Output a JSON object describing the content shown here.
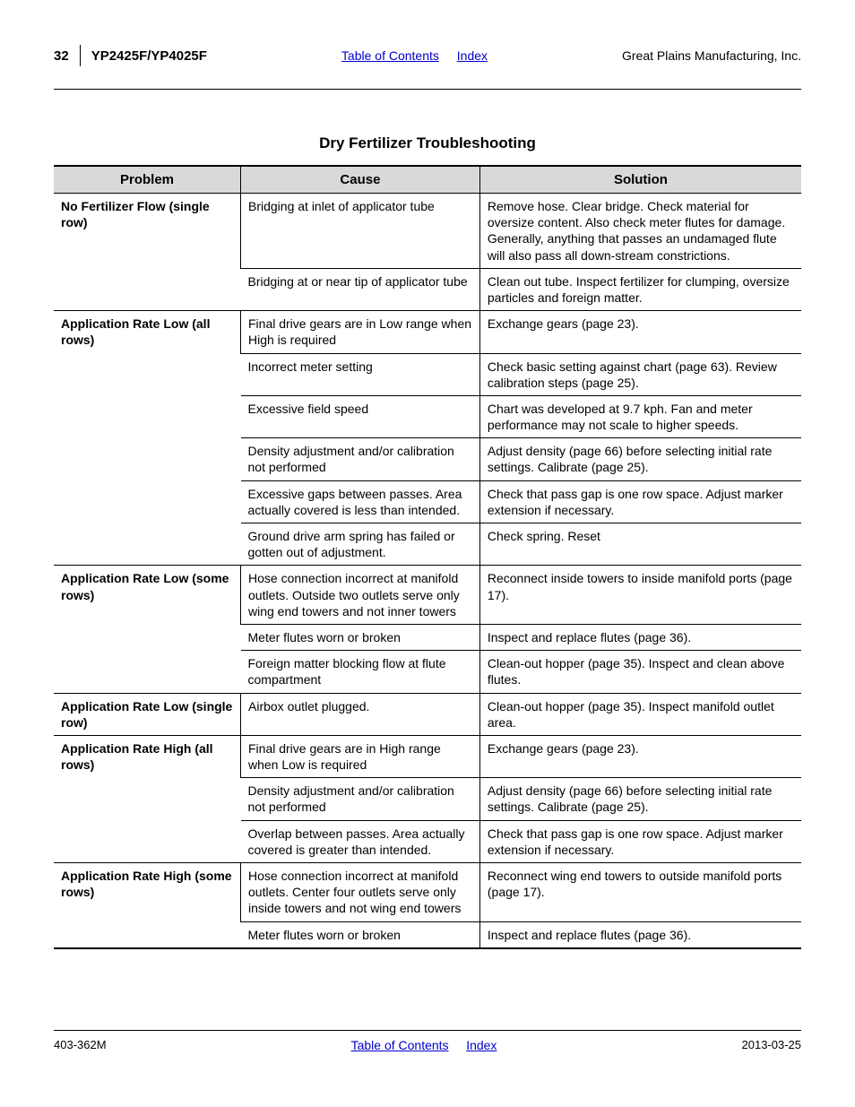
{
  "header": {
    "page_number": "32",
    "model": "YP2425F/YP4025F",
    "toc_link": "Table of Contents",
    "index_link": "Index",
    "company": "Great Plains Manufacturing, Inc."
  },
  "section_title": "Dry Fertilizer Troubleshooting",
  "table": {
    "columns": [
      "Problem",
      "Cause",
      "Solution"
    ],
    "groups": [
      {
        "problem": "No Fertilizer Flow (single row)",
        "rows": [
          {
            "cause": "Bridging at inlet of applicator tube",
            "solution": "Remove hose. Clear bridge. Check material for oversize content. Also check meter flutes for damage. Generally, anything that passes an undamaged flute will also pass all down-stream constrictions."
          },
          {
            "cause": "Bridging at or near tip of applicator tube",
            "solution": "Clean out tube. Inspect fertilizer for clumping, oversize particles and foreign matter."
          }
        ]
      },
      {
        "problem": "Application Rate Low (all rows)",
        "rows": [
          {
            "cause": "Final drive gears are in Low range when High is required",
            "solution": "Exchange gears (page 23)."
          },
          {
            "cause": "Incorrect meter setting",
            "solution": "Check basic setting against chart (page 63). Review calibration steps (page 25)."
          },
          {
            "cause": "Excessive field speed",
            "solution": "Chart was developed at 9.7 kph. Fan and meter performance may not scale to higher speeds."
          },
          {
            "cause": "Density adjustment and/or calibration not performed",
            "solution": "Adjust density (page 66) before selecting initial rate settings. Calibrate (page 25)."
          },
          {
            "cause": "Excessive gaps between passes. Area actually covered is less than intended.",
            "solution": "Check that pass gap is one row space. Adjust marker extension if necessary."
          },
          {
            "cause": "Ground drive arm spring has failed or gotten out of adjustment.",
            "solution": "Check spring. Reset"
          }
        ]
      },
      {
        "problem": "Application Rate Low (some rows)",
        "rows": [
          {
            "cause": "Hose connection incorrect at manifold outlets. Outside two outlets serve only wing end towers and not inner towers",
            "solution": "Reconnect inside towers to inside manifold ports (page 17)."
          },
          {
            "cause": "Meter flutes worn or broken",
            "solution": "Inspect and replace flutes (page 36)."
          },
          {
            "cause": "Foreign matter blocking flow at flute compartment",
            "solution": "Clean-out hopper (page 35). Inspect and clean above flutes."
          }
        ]
      },
      {
        "problem": "Application Rate Low (single row)",
        "rows": [
          {
            "cause": "Airbox outlet plugged.",
            "solution": "Clean-out hopper (page 35). Inspect manifold outlet area."
          }
        ]
      },
      {
        "problem": "Application Rate High (all rows)",
        "rows": [
          {
            "cause": "Final drive gears are in High range when Low is required",
            "solution": "Exchange gears (page 23)."
          },
          {
            "cause": "Density adjustment and/or calibration not performed",
            "solution": "Adjust density (page 66) before selecting initial rate settings. Calibrate (page 25)."
          },
          {
            "cause": "Overlap between passes. Area actually covered is greater than intended.",
            "solution": "Check that pass gap is one row space. Adjust marker extension if necessary."
          }
        ]
      },
      {
        "problem": "Application Rate High (some rows)",
        "rows": [
          {
            "cause": "Hose connection incorrect at manifold outlets. Center four outlets serve only inside towers and not wing end towers",
            "solution": "Reconnect wing end towers to outside manifold ports (page 17)."
          },
          {
            "cause": "Meter flutes worn or broken",
            "solution": "Inspect and replace flutes (page 36)."
          }
        ]
      }
    ]
  },
  "footer": {
    "doc_number": "403-362M",
    "toc_link": "Table of Contents",
    "index_link": "Index",
    "date": "2013-03-25"
  }
}
